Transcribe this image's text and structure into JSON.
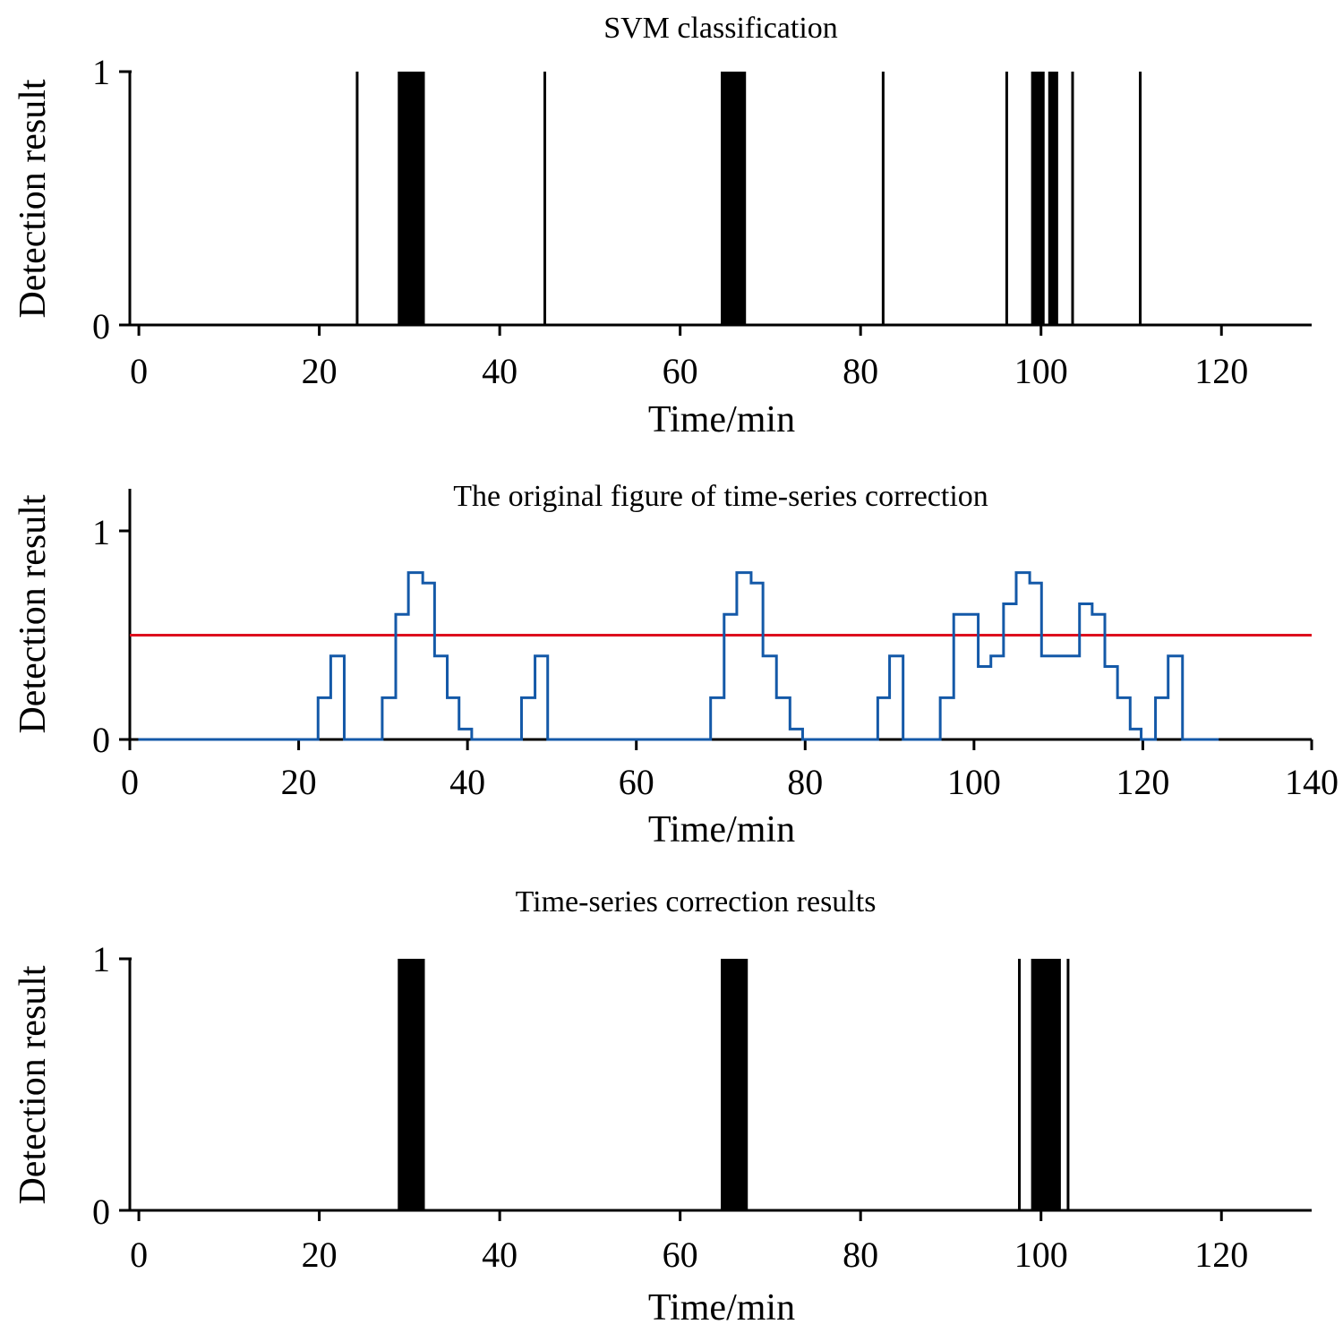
{
  "chart_data": [
    {
      "type": "line",
      "title": "SVM classification",
      "xlabel": "Time/min",
      "ylabel": "Detection result",
      "xlim": [
        -1,
        130
      ],
      "ylim": [
        0,
        1
      ],
      "xticks": [
        "0",
        "20",
        "40",
        "60",
        "80",
        "100",
        "120"
      ],
      "yticks": [
        "0",
        "1"
      ],
      "grid": false,
      "series": [
        {
          "style": "binary-pulses",
          "color": "#000000",
          "line_pulses": [
            24.2,
            45.0,
            82.5,
            96.2,
            103.5,
            111.0
          ],
          "block_pulses": [
            [
              28.7,
              31.7
            ],
            [
              64.5,
              67.3
            ],
            [
              98.9,
              100.4
            ],
            [
              100.8,
              101.9
            ]
          ]
        }
      ]
    },
    {
      "type": "line",
      "title": "The original figure of time-series correction",
      "xlabel": "Time/min",
      "ylabel": "Detection result",
      "xlim": [
        0,
        140
      ],
      "ylim": [
        0,
        1.2
      ],
      "xticks": [
        "0",
        "20",
        "40",
        "60",
        "80",
        "100",
        "120",
        "140"
      ],
      "yticks": [
        "0",
        "1"
      ],
      "grid": false,
      "threshold": {
        "value": 0.5,
        "color": "#dd0f1e"
      },
      "series": [
        {
          "style": "step",
          "color": "#1459a8",
          "x": [
            1.0,
            22.3,
            23.8,
            25.4,
            29.9,
            31.5,
            33.0,
            34.7,
            36.1,
            37.6,
            39.0,
            40.5,
            46.4,
            48.0,
            49.5,
            68.8,
            70.4,
            71.9,
            73.6,
            75.0,
            76.6,
            78.2,
            79.7,
            88.6,
            90.0,
            91.6,
            96.0,
            97.6,
            100.5,
            102.0,
            103.5,
            105.0,
            106.6,
            108.0,
            109.5,
            112.5,
            114.0,
            115.5,
            117.0,
            118.5,
            119.8,
            121.5,
            123.0,
            124.7,
            129.0
          ],
          "y": [
            0,
            0.2,
            0.4,
            0,
            0.2,
            0.6,
            0.8,
            0.75,
            0.4,
            0.2,
            0.05,
            0,
            0.2,
            0.4,
            0,
            0.2,
            0.6,
            0.8,
            0.75,
            0.4,
            0.2,
            0.05,
            0,
            0.2,
            0.4,
            0,
            0.2,
            0.6,
            0.35,
            0.4,
            0.65,
            0.8,
            0.75,
            0.4,
            0.4,
            0.65,
            0.6,
            0.35,
            0.2,
            0.05,
            0,
            0.2,
            0.4,
            0,
            0
          ]
        }
      ]
    },
    {
      "type": "line",
      "title": "Time-series correction results",
      "xlabel": "Time/min",
      "ylabel": "Detection result",
      "xlim": [
        -1,
        130
      ],
      "ylim": [
        0,
        1
      ],
      "xticks": [
        "0",
        "20",
        "40",
        "60",
        "80",
        "100",
        "120"
      ],
      "yticks": [
        "0",
        "1"
      ],
      "grid": false,
      "series": [
        {
          "style": "binary-pulses",
          "color": "#000000",
          "line_pulses": [
            97.6,
            103.0
          ],
          "block_pulses": [
            [
              28.7,
              31.7
            ],
            [
              64.5,
              67.5
            ],
            [
              98.9,
              102.2
            ]
          ]
        }
      ]
    }
  ]
}
